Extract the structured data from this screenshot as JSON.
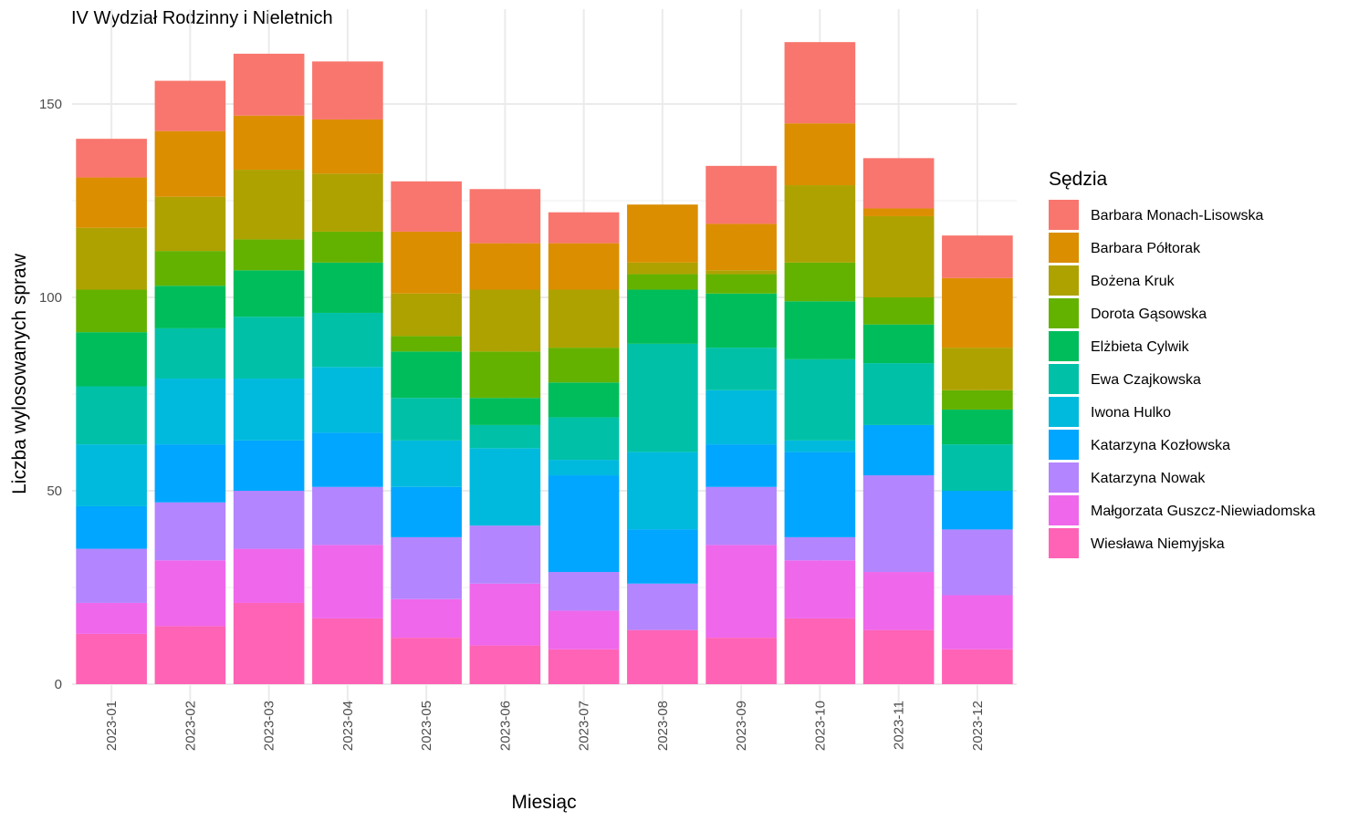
{
  "chart_data": {
    "type": "bar",
    "stacked": true,
    "title": "IV Wydział Rodzinny i Nieletnich",
    "xlabel": "Miesiąc",
    "ylabel": "Liczba wylosowanych spraw",
    "ylim": [
      0,
      166
    ],
    "yticks": [
      0,
      50,
      100,
      150
    ],
    "grid": true,
    "legend_title": "Sędzia",
    "legend_position": "right",
    "categories": [
      "2023-01",
      "2023-02",
      "2023-03",
      "2023-04",
      "2023-05",
      "2023-06",
      "2023-07",
      "2023-08",
      "2023-09",
      "2023-10",
      "2023-11",
      "2023-12"
    ],
    "series": [
      {
        "name": "Barbara Monach-Lisowska",
        "color": "#F8766D",
        "values": [
          10,
          13,
          16,
          15,
          13,
          14,
          8,
          0,
          15,
          21,
          13,
          11
        ]
      },
      {
        "name": "Barbara Półtorak",
        "color": "#DB8E00",
        "values": [
          13,
          17,
          14,
          14,
          16,
          12,
          12,
          15,
          12,
          16,
          2,
          18
        ]
      },
      {
        "name": "Bożena Kruk",
        "color": "#AEA200",
        "values": [
          16,
          14,
          18,
          15,
          11,
          16,
          15,
          3,
          1,
          20,
          21,
          11
        ]
      },
      {
        "name": "Dorota Gąsowska",
        "color": "#64B200",
        "values": [
          11,
          9,
          8,
          8,
          4,
          12,
          9,
          4,
          5,
          10,
          7,
          5
        ]
      },
      {
        "name": "Elżbieta Cylwik",
        "color": "#00BD5C",
        "values": [
          14,
          11,
          12,
          13,
          12,
          7,
          9,
          14,
          14,
          15,
          10,
          9
        ]
      },
      {
        "name": "Ewa Czajkowska",
        "color": "#00C1A7",
        "values": [
          15,
          13,
          16,
          14,
          11,
          6,
          11,
          28,
          11,
          21,
          16,
          12
        ]
      },
      {
        "name": "Iwona Hulko",
        "color": "#00BADE",
        "values": [
          16,
          17,
          16,
          17,
          12,
          20,
          4,
          20,
          14,
          3,
          0,
          0
        ]
      },
      {
        "name": "Katarzyna Kozłowska",
        "color": "#00A6FF",
        "values": [
          11,
          15,
          13,
          14,
          13,
          0,
          25,
          14,
          11,
          22,
          13,
          10
        ]
      },
      {
        "name": "Katarzyna Nowak",
        "color": "#B385FF",
        "values": [
          14,
          15,
          15,
          15,
          16,
          15,
          10,
          12,
          15,
          6,
          25,
          17
        ]
      },
      {
        "name": "Małgorzata Guszcz-Niewiadomska",
        "color": "#EF67EB",
        "values": [
          8,
          17,
          14,
          19,
          10,
          16,
          10,
          0,
          24,
          15,
          15,
          14
        ]
      },
      {
        "name": "Wiesława Niemyjska",
        "color": "#FF63B6",
        "values": [
          13,
          15,
          21,
          17,
          12,
          10,
          9,
          14,
          12,
          17,
          14,
          9
        ]
      }
    ]
  }
}
